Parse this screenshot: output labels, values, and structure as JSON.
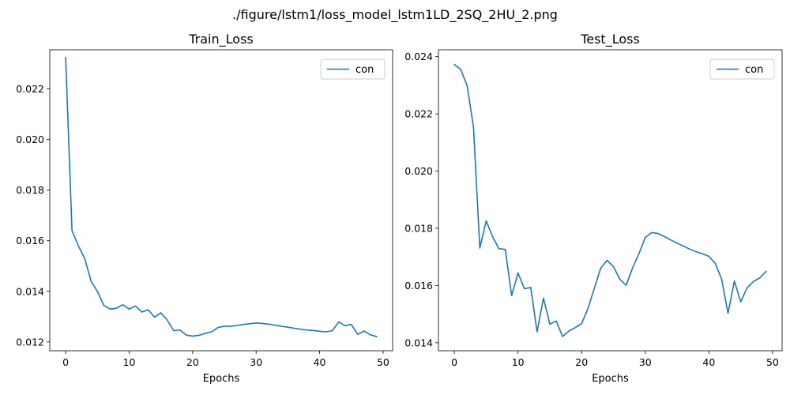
{
  "suptitle": "./figure/lstm1/loss_model_lstm1LD_2SQ_2HU_2.png",
  "chart_data": [
    {
      "type": "line",
      "title": "Train_Loss",
      "xlabel": "Epochs",
      "ylabel": "",
      "xlim": [
        -2.5,
        51.5
      ],
      "ylim": [
        0.01165,
        0.02355
      ],
      "xticks": [
        0,
        10,
        20,
        30,
        40,
        50
      ],
      "xtick_labels": [
        "0",
        "10",
        "20",
        "30",
        "40",
        "50"
      ],
      "yticks": [
        0.012,
        0.014,
        0.016,
        0.018,
        0.02,
        0.022
      ],
      "ytick_labels": [
        "0.012",
        "0.014",
        "0.016",
        "0.018",
        "0.020",
        "0.022"
      ],
      "legend_position": "top-right",
      "grid": false,
      "series": [
        {
          "name": "con",
          "color": "#1f77b4",
          "x": [
            0,
            1,
            2,
            3,
            4,
            5,
            6,
            7,
            8,
            9,
            10,
            11,
            12,
            13,
            14,
            15,
            16,
            17,
            18,
            19,
            20,
            21,
            22,
            23,
            24,
            25,
            26,
            27,
            28,
            29,
            30,
            31,
            32,
            33,
            34,
            35,
            36,
            37,
            38,
            39,
            40,
            41,
            42,
            43,
            44,
            45,
            46,
            47,
            48,
            49
          ],
          "values": [
            0.02325,
            0.0164,
            0.0158,
            0.0153,
            0.0144,
            0.014,
            0.01345,
            0.0133,
            0.01333,
            0.01347,
            0.0133,
            0.01342,
            0.01318,
            0.01327,
            0.01298,
            0.01315,
            0.01286,
            0.01245,
            0.01247,
            0.01227,
            0.01223,
            0.01226,
            0.01234,
            0.0124,
            0.01257,
            0.01262,
            0.01262,
            0.01265,
            0.01269,
            0.01272,
            0.01275,
            0.01273,
            0.0127,
            0.01266,
            0.01262,
            0.01258,
            0.01254,
            0.0125,
            0.01247,
            0.01245,
            0.01242,
            0.0124,
            0.01244,
            0.01279,
            0.01264,
            0.01269,
            0.0123,
            0.01243,
            0.01228,
            0.01221
          ]
        }
      ]
    },
    {
      "type": "line",
      "title": "Test_Loss",
      "xlabel": "Epochs",
      "ylabel": "",
      "xlim": [
        -2.5,
        51.5
      ],
      "ylim": [
        0.01372,
        0.02424
      ],
      "xticks": [
        0,
        10,
        20,
        30,
        40,
        50
      ],
      "xtick_labels": [
        "0",
        "10",
        "20",
        "30",
        "40",
        "50"
      ],
      "yticks": [
        0.014,
        0.016,
        0.018,
        0.02,
        0.022,
        0.024
      ],
      "ytick_labels": [
        "0.014",
        "0.016",
        "0.018",
        "0.020",
        "0.022",
        "0.024"
      ],
      "legend_position": "top-right",
      "grid": false,
      "series": [
        {
          "name": "con",
          "color": "#1f77b4",
          "x": [
            0,
            1,
            2,
            3,
            4,
            5,
            6,
            7,
            8,
            9,
            10,
            11,
            12,
            13,
            14,
            15,
            16,
            17,
            18,
            19,
            20,
            21,
            22,
            23,
            24,
            25,
            26,
            27,
            28,
            29,
            30,
            31,
            32,
            33,
            34,
            35,
            36,
            37,
            38,
            39,
            40,
            41,
            42,
            43,
            44,
            45,
            46,
            47,
            48,
            49
          ],
          "values": [
            0.02373,
            0.02355,
            0.02299,
            0.02155,
            0.01731,
            0.01826,
            0.01771,
            0.01729,
            0.01726,
            0.01565,
            0.01644,
            0.01589,
            0.01593,
            0.01438,
            0.01556,
            0.01465,
            0.01476,
            0.01422,
            0.01441,
            0.01453,
            0.01467,
            0.0152,
            0.01591,
            0.01661,
            0.01688,
            0.01666,
            0.01622,
            0.01601,
            0.01661,
            0.01711,
            0.01768,
            0.01785,
            0.01782,
            0.01771,
            0.01759,
            0.01748,
            0.01738,
            0.01727,
            0.01718,
            0.01711,
            0.01702,
            0.01677,
            0.01622,
            0.01503,
            0.01616,
            0.01543,
            0.01592,
            0.01614,
            0.01627,
            0.0165
          ]
        }
      ]
    }
  ]
}
